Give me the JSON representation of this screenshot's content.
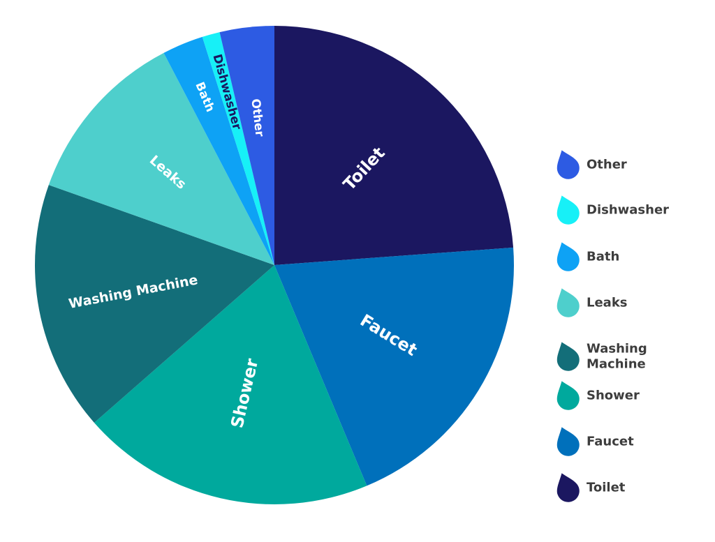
{
  "chart_data": {
    "type": "pie",
    "start_angle_deg": 0,
    "direction": "clockwise",
    "slices": [
      {
        "label": "Toilet",
        "value": 24,
        "color": "#1b1760",
        "label_lines": [
          "Toilet"
        ]
      },
      {
        "label": "Faucet",
        "value": 20,
        "color": "#0070bb",
        "label_lines": [
          "Faucet"
        ]
      },
      {
        "label": "Shower",
        "value": 20,
        "color": "#00a99d",
        "label_lines": [
          "Shower"
        ]
      },
      {
        "label": "Washing Machine",
        "value": 17,
        "color": "#136e79",
        "label_lines": [
          "Washing Machine"
        ]
      },
      {
        "label": "Leaks",
        "value": 12,
        "color": "#4ecfcc",
        "label_lines": [
          "Leaks"
        ]
      },
      {
        "label": "Bath",
        "value": 2.8,
        "color": "#0ea2f5",
        "label_lines": [
          "Bath"
        ]
      },
      {
        "label": "Dishwasher",
        "value": 1.2,
        "color": "#17f0f7",
        "label_lines": [
          "Dishwasher"
        ]
      },
      {
        "label": "Other",
        "value": 3.7,
        "color": "#2d5be3",
        "label_lines": [
          "Other"
        ]
      }
    ],
    "legend": {
      "placement": "right",
      "items": [
        {
          "label": "Other",
          "color": "#2d5be3",
          "lines": [
            "Other"
          ]
        },
        {
          "label": "Dishwasher",
          "color": "#17f0f7",
          "lines": [
            "Dishwasher"
          ]
        },
        {
          "label": "Bath",
          "color": "#0ea2f5",
          "lines": [
            "Bath"
          ]
        },
        {
          "label": "Leaks",
          "color": "#4ecfcc",
          "lines": [
            "Leaks"
          ]
        },
        {
          "label": "Washing Machine",
          "color": "#136e79",
          "lines": [
            "Washing",
            "Machine"
          ]
        },
        {
          "label": "Shower",
          "color": "#00a99d",
          "lines": [
            "Shower"
          ]
        },
        {
          "label": "Faucet",
          "color": "#0070bb",
          "lines": [
            "Faucet"
          ]
        },
        {
          "label": "Toilet",
          "color": "#1b1760",
          "lines": [
            "Toilet"
          ]
        }
      ]
    }
  }
}
